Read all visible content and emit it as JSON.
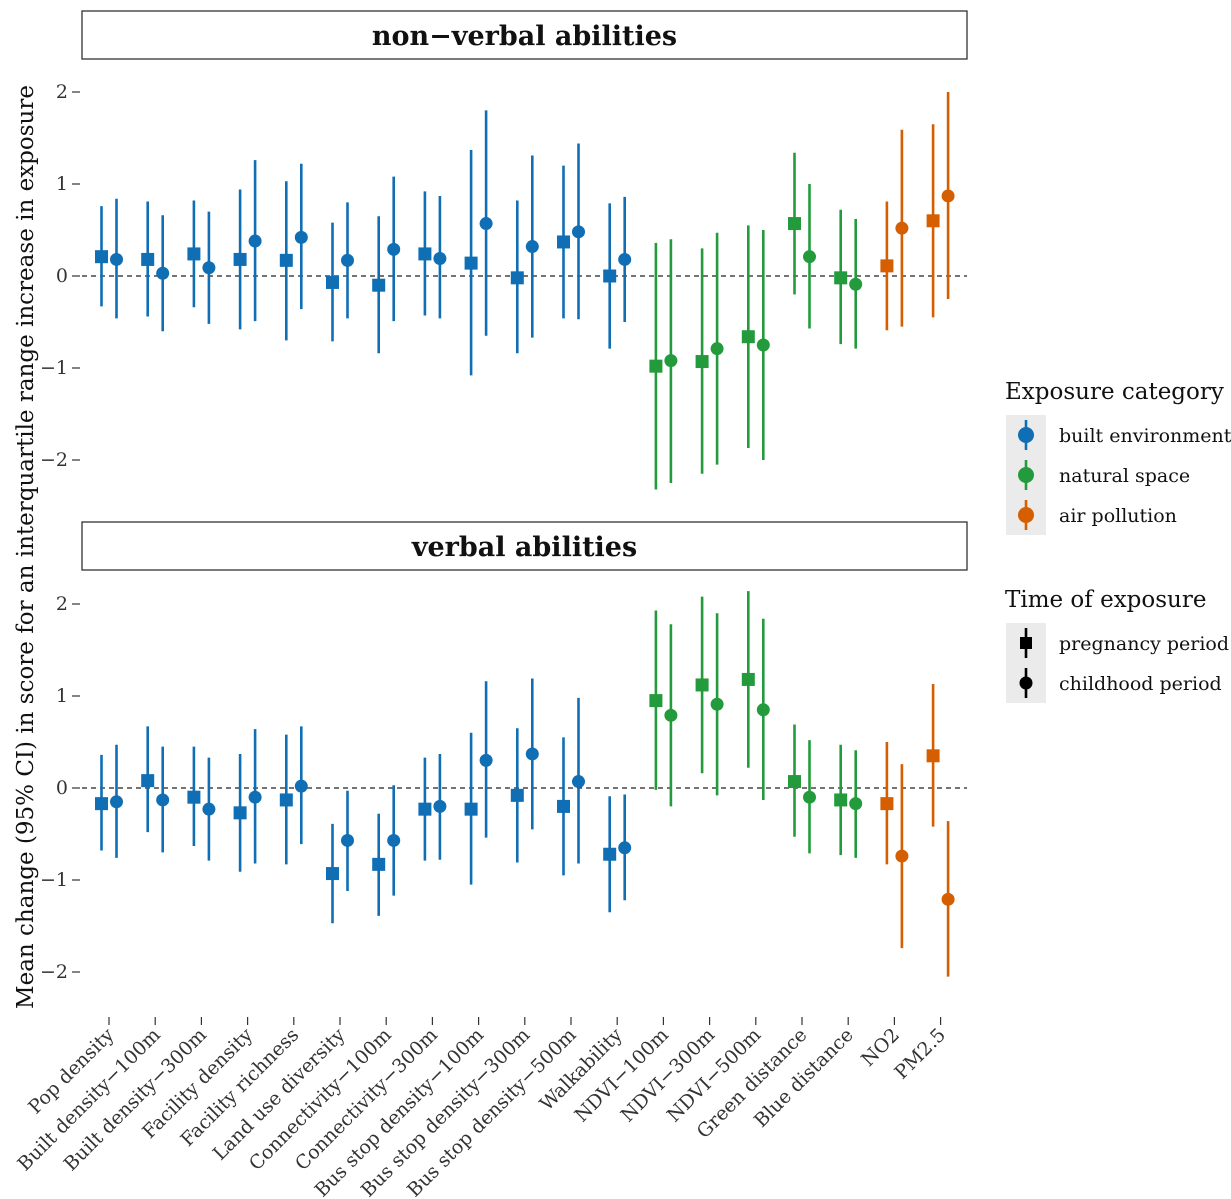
{
  "chart_data": {
    "type": "scatter",
    "subtype": "forest-plot-pointrange",
    "panels": [
      "non−verbal abilities",
      "verbal abilities"
    ],
    "ylabel": "Mean change (95% CI) in score for an interquartile range increase in exposure",
    "xlabel": "",
    "ylim": [
      -2.5,
      2.05
    ],
    "y_ticks": [
      -2,
      -1,
      0,
      1,
      2
    ],
    "y_tick_labels": [
      "−2",
      "−1",
      "0",
      "1",
      "2"
    ],
    "reference_line": 0,
    "grid": false,
    "legend_position": "right",
    "categories": [
      "Pop density",
      "Built density−100m",
      "Built density−300m",
      "Facility density",
      "Facility richness",
      "Land use diversity",
      "Connectivity−100m",
      "Connectivity−300m",
      "Bus stop density−100m",
      "Bus stop density−300m",
      "Bus stop density−500m",
      "Walkability",
      "NDVI−100m",
      "NDVI−300m",
      "NDVI−500m",
      "Green distance",
      "Blue distance",
      "NO2",
      "PM2.5"
    ],
    "category_group": [
      "built environment",
      "built environment",
      "built environment",
      "built environment",
      "built environment",
      "built environment",
      "built environment",
      "built environment",
      "built environment",
      "built environment",
      "built environment",
      "built environment",
      "natural space",
      "natural space",
      "natural space",
      "natural space",
      "natural space",
      "air pollution",
      "air pollution"
    ],
    "exposure_categories": [
      {
        "name": "built environment",
        "color": "#0f6eb4"
      },
      {
        "name": "natural space",
        "color": "#239b3c"
      },
      {
        "name": "air pollution",
        "color": "#d55e00"
      }
    ],
    "times": [
      {
        "name": "pregnancy period",
        "shape": "square"
      },
      {
        "name": "childhood period",
        "shape": "circle"
      }
    ],
    "series": [
      {
        "panel": "non−verbal abilities",
        "time": "pregnancy period",
        "values": [
          0.21,
          0.18,
          0.24,
          0.18,
          0.17,
          -0.07,
          -0.1,
          0.24,
          0.14,
          -0.02,
          0.37,
          0.0,
          -0.98,
          -0.93,
          -0.66,
          0.57,
          -0.02,
          0.11,
          0.6
        ],
        "lower": [
          -0.33,
          -0.44,
          -0.34,
          -0.58,
          -0.7,
          -0.71,
          -0.84,
          -0.43,
          -1.08,
          -0.84,
          -0.46,
          -0.79,
          -2.32,
          -2.15,
          -1.87,
          -0.2,
          -0.74,
          -0.59,
          -0.45
        ],
        "upper": [
          0.76,
          0.81,
          0.82,
          0.94,
          1.03,
          0.58,
          0.65,
          0.92,
          1.37,
          0.82,
          1.2,
          0.79,
          0.36,
          0.3,
          0.55,
          1.34,
          0.72,
          0.81,
          1.65
        ]
      },
      {
        "panel": "non−verbal abilities",
        "time": "childhood period",
        "values": [
          0.18,
          0.03,
          0.09,
          0.38,
          0.42,
          0.17,
          0.29,
          0.19,
          0.57,
          0.32,
          0.48,
          0.18,
          -0.92,
          -0.79,
          -0.75,
          0.21,
          -0.09,
          0.52,
          0.87
        ],
        "lower": [
          -0.46,
          -0.6,
          -0.52,
          -0.49,
          -0.36,
          -0.46,
          -0.49,
          -0.46,
          -0.65,
          -0.67,
          -0.47,
          -0.5,
          -2.25,
          -2.05,
          -2.0,
          -0.57,
          -0.79,
          -0.55,
          -0.25
        ],
        "upper": [
          0.84,
          0.66,
          0.7,
          1.26,
          1.22,
          0.8,
          1.08,
          0.87,
          1.8,
          1.31,
          1.44,
          0.86,
          0.4,
          0.47,
          0.5,
          1.0,
          0.62,
          1.59,
          2.0
        ]
      },
      {
        "panel": "verbal abilities",
        "time": "pregnancy period",
        "values": [
          -0.17,
          0.08,
          -0.1,
          -0.27,
          -0.13,
          -0.93,
          -0.83,
          -0.23,
          -0.23,
          -0.08,
          -0.2,
          -0.72,
          0.95,
          1.12,
          1.18,
          0.07,
          -0.13,
          -0.17,
          0.35
        ],
        "lower": [
          -0.68,
          -0.48,
          -0.63,
          -0.91,
          -0.83,
          -1.47,
          -1.39,
          -0.79,
          -1.05,
          -0.81,
          -0.95,
          -1.35,
          -0.02,
          0.16,
          0.22,
          -0.53,
          -0.73,
          -0.83,
          -0.42
        ],
        "upper": [
          0.36,
          0.67,
          0.45,
          0.37,
          0.58,
          -0.39,
          -0.28,
          0.33,
          0.6,
          0.65,
          0.55,
          -0.09,
          1.93,
          2.08,
          2.14,
          0.69,
          0.47,
          0.5,
          1.13
        ]
      },
      {
        "panel": "verbal abilities",
        "time": "childhood period",
        "values": [
          -0.15,
          -0.13,
          -0.23,
          -0.1,
          0.02,
          -0.57,
          -0.57,
          -0.2,
          0.3,
          0.37,
          0.07,
          -0.65,
          0.79,
          0.91,
          0.85,
          -0.1,
          -0.17,
          -0.74,
          -1.21
        ],
        "lower": [
          -0.76,
          -0.7,
          -0.79,
          -0.82,
          -0.61,
          -1.12,
          -1.17,
          -0.78,
          -0.54,
          -0.45,
          -0.82,
          -1.22,
          -0.2,
          -0.08,
          -0.13,
          -0.71,
          -0.76,
          -1.74,
          -2.05
        ],
        "upper": [
          0.47,
          0.45,
          0.33,
          0.64,
          0.67,
          -0.03,
          0.03,
          0.37,
          1.16,
          1.19,
          0.98,
          -0.07,
          1.78,
          1.9,
          1.84,
          0.52,
          0.41,
          0.26,
          -0.36
        ]
      }
    ]
  },
  "legend": {
    "exposure_title": "Exposure category",
    "time_title": "Time of exposure"
  }
}
